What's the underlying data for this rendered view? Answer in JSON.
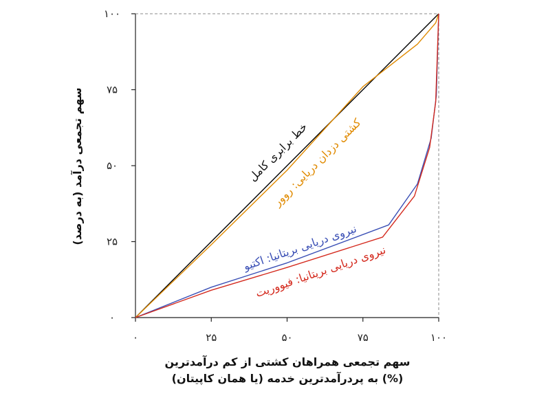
{
  "chart_data": {
    "type": "line",
    "xlabel_line1": "سهم تجمعی همراهان کشتی از کم درآمدترین",
    "xlabel_line2": "به پردرآمدترین خدمه (یا همان کاپیتان) (%)",
    "ylabel": "سهم تجمعی درآمد (به درصد)",
    "xlim": [
      0,
      100
    ],
    "ylim": [
      0,
      100
    ],
    "x_ticks": [
      0,
      25,
      50,
      75,
      100
    ],
    "x_tick_labels": [
      "۰",
      "۲۵",
      "۵۰",
      "۷۵",
      "۱۰۰"
    ],
    "y_ticks": [
      0,
      25,
      50,
      75,
      100
    ],
    "y_tick_labels": [
      "۰",
      "۲۵",
      "۵۰",
      "۷۵",
      "۱۰۰"
    ],
    "grid": false,
    "series": [
      {
        "name": "خط برابری کامل",
        "color": "#000000",
        "x": [
          0,
          100
        ],
        "y": [
          0,
          100
        ]
      },
      {
        "name": "کشتی دزدان دریایی: روور",
        "color": "#e08a00",
        "x": [
          0,
          25,
          50,
          75,
          93,
          99,
          100
        ],
        "y": [
          0,
          24,
          48.5,
          76,
          90,
          97,
          100
        ]
      },
      {
        "name": "نیروی دریایی بریتانیا: اکتیو",
        "color": "#3a4fb5",
        "x": [
          0,
          25,
          50,
          83.5,
          93,
          97.5,
          99.2,
          100
        ],
        "y": [
          0,
          10,
          18,
          30.5,
          44,
          59,
          73,
          100
        ]
      },
      {
        "name": "نیروی دریایی بریتانیا: فیووریت",
        "color": "#d42a1e",
        "x": [
          0,
          25,
          50,
          81.5,
          92,
          97,
          99,
          100
        ],
        "y": [
          0,
          9,
          16.5,
          26.5,
          40,
          56,
          71,
          100
        ]
      }
    ]
  }
}
